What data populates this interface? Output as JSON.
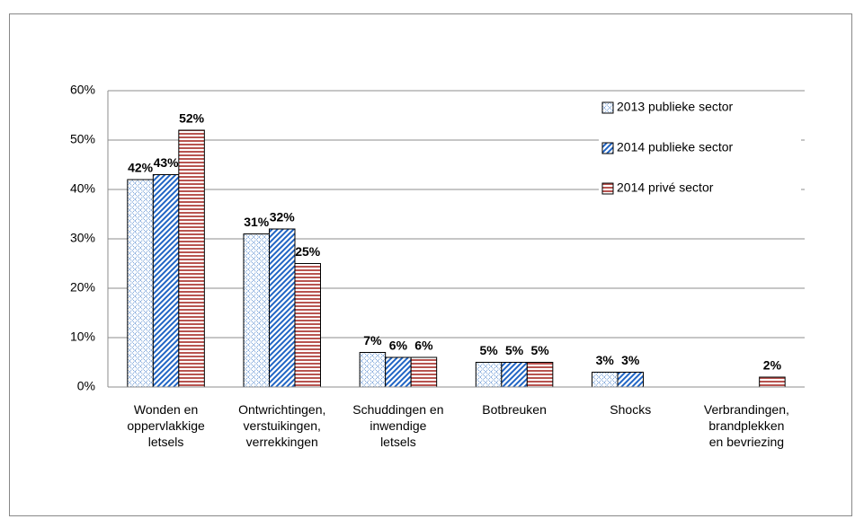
{
  "chart_data": {
    "type": "bar",
    "categories": [
      "Wonden en\noppervlakkige\nletsels",
      "Ontwrichtingen,\nverstuikingen,\nverrekkingen",
      "Schuddingen en\ninwendige\nletsels",
      "Botbreuken",
      "Shocks",
      "Verbrandingen,\nbrandplekken\nen bevriezing"
    ],
    "series": [
      {
        "name": "2013 publieke sector",
        "color": "#3a78c8",
        "pattern": "crosshatch",
        "values": [
          42,
          31,
          7,
          5,
          3,
          null
        ],
        "value_labels": [
          "42%",
          "31%",
          "7%",
          "5%",
          "3%",
          null
        ]
      },
      {
        "name": "2014 publieke sector",
        "color": "#1f64c4",
        "pattern": "diagonal",
        "values": [
          43,
          32,
          6,
          5,
          3,
          null
        ],
        "value_labels": [
          "43%",
          "32%",
          "6%",
          "5%",
          "3%",
          null
        ]
      },
      {
        "name": "2014 privé sector",
        "color": "#b85450",
        "pattern": "horizontal",
        "values": [
          52,
          25,
          6,
          5,
          null,
          2
        ],
        "value_labels": [
          "52%",
          "25%",
          "6%",
          "5%",
          null,
          "2%"
        ]
      }
    ],
    "ylim": [
      0,
      60
    ],
    "yticks": [
      {
        "value": 0,
        "label": "0%"
      },
      {
        "value": 10,
        "label": "10%"
      },
      {
        "value": 20,
        "label": "20%"
      },
      {
        "value": 30,
        "label": "30%"
      },
      {
        "value": 40,
        "label": "40%"
      },
      {
        "value": 50,
        "label": "50%"
      },
      {
        "value": 60,
        "label": "60%"
      }
    ],
    "grid": true,
    "legend": "top-right"
  }
}
